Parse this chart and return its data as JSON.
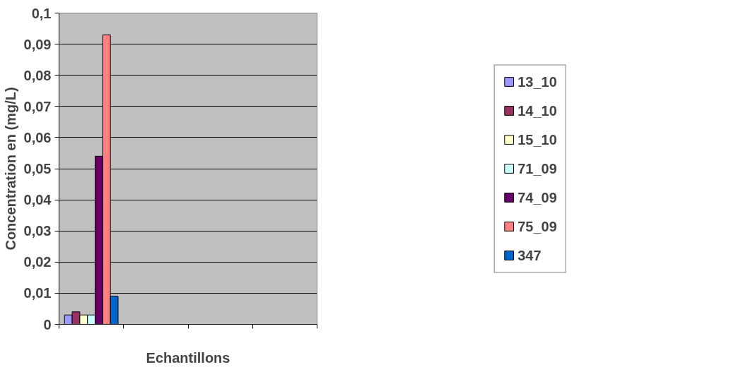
{
  "chart_data": {
    "type": "bar",
    "xlabel": "Echantillons",
    "ylabel": "Concentration en (mg/L)",
    "categories": [
      null,
      null,
      null,
      null
    ],
    "series": [
      {
        "name": "13_10",
        "color": "#9999ff",
        "values": [
          0.003,
          null,
          null,
          null
        ]
      },
      {
        "name": "14_10",
        "color": "#993366",
        "values": [
          0.004,
          null,
          null,
          null
        ]
      },
      {
        "name": "15_10",
        "color": "#ffffcc",
        "values": [
          0.003,
          null,
          null,
          null
        ]
      },
      {
        "name": "71_09",
        "color": "#ccffff",
        "values": [
          0.003,
          null,
          null,
          null
        ]
      },
      {
        "name": "74_09",
        "color": "#660066",
        "values": [
          0.054,
          null,
          null,
          null
        ]
      },
      {
        "name": "75_09",
        "color": "#ff8080",
        "values": [
          0.093,
          null,
          null,
          null
        ]
      },
      {
        "name": "347",
        "color": "#0066cc",
        "values": [
          0.009,
          null,
          null,
          null
        ]
      }
    ],
    "ylim": [
      0,
      0.1
    ],
    "yticks": [
      0,
      {
        "value": 0.01,
        "label": "0,01"
      },
      {
        "value": 0.02,
        "label": "0,02"
      },
      {
        "value": 0.03,
        "label": "0,03"
      },
      {
        "value": 0.04,
        "label": "0,04"
      },
      {
        "value": 0.05,
        "label": "0,05"
      },
      {
        "value": 0.06,
        "label": "0,06"
      },
      {
        "value": 0.07,
        "label": "0,07"
      },
      {
        "value": 0.08,
        "label": "0,08"
      },
      {
        "value": 0.09,
        "label": "0,09"
      },
      {
        "value": 0.1,
        "label": "0,1"
      }
    ],
    "grid": "y",
    "legend": "right"
  }
}
